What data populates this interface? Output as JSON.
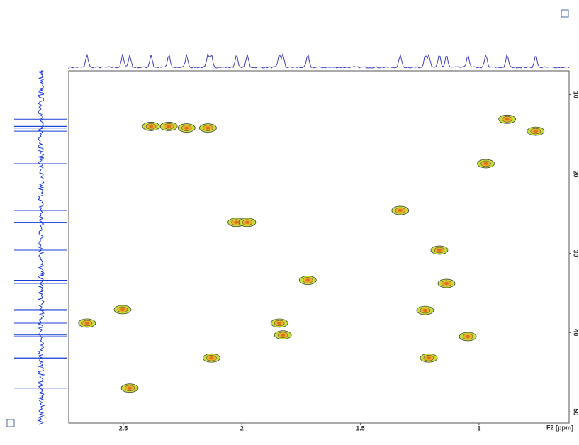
{
  "chart_data": {
    "type": "scatter",
    "x_label": "F2 [ppm]",
    "xlim": [
      2.73,
      0.62
    ],
    "xticks": [
      2.5,
      2.0,
      1.5,
      1.0
    ],
    "ylim": [
      7,
      51.4
    ],
    "yticks": [
      10,
      20,
      30,
      40,
      50
    ],
    "series": [
      {
        "color": "#c8dc3c",
        "x": [
          2.383,
          2.308,
          2.233,
          2.143,
          0.881,
          0.761,
          1.332,
          2.023,
          1.977,
          1.167,
          1.722,
          2.503,
          2.653,
          1.842,
          1.827,
          1.227,
          1.047,
          2.128,
          1.212,
          2.473,
          0.971,
          1.137
        ],
        "values": [
          14.0,
          14.0,
          14.2,
          14.2,
          13.1,
          14.6,
          24.6,
          26.1,
          26.1,
          29.6,
          33.4,
          37.1,
          38.8,
          38.8,
          40.3,
          37.2,
          40.5,
          43.2,
          43.2,
          47.0,
          18.7,
          33.8
        ]
      }
    ]
  }
}
